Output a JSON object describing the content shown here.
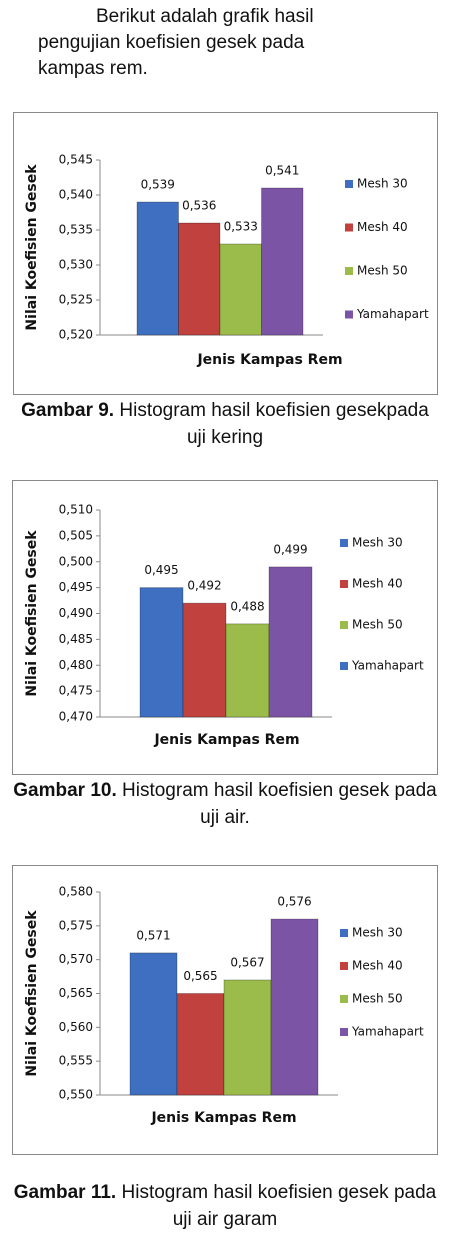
{
  "intro": "Berikut adalah grafik hasil pengujian koefisien gesek pada kampas rem.",
  "captions": [
    {
      "label": "Gambar 9.",
      "text": "Histogram hasil koefisien gesekpada uji kering"
    },
    {
      "label": "Gambar 10.",
      "text": "Histogram hasil koefisien gesek pada uji air."
    },
    {
      "label": "Gambar 11.",
      "text": "Histogram hasil koefisien gesek pada uji air garam"
    }
  ],
  "chart_data": [
    {
      "type": "bar",
      "y_label": "Nilai Koefisien Gesek",
      "x_label": "Jenis Kampas Rem",
      "categories": [
        null
      ],
      "ylim": [
        0.52,
        0.545
      ],
      "yticks": [
        {
          "value": 0.52,
          "label": "0,520"
        },
        {
          "value": 0.525,
          "label": "0,525"
        },
        {
          "value": 0.53,
          "label": "0,530"
        },
        {
          "value": 0.535,
          "label": "0,535"
        },
        {
          "value": 0.54,
          "label": "0,540"
        },
        {
          "value": 0.545,
          "label": "0,545"
        }
      ],
      "series": [
        {
          "name": "Mesh 30",
          "color": "#3e6fc0",
          "values": [
            0.539
          ],
          "value_labels": [
            "0,539"
          ]
        },
        {
          "name": "Mesh 40",
          "color": "#c0413d",
          "values": [
            0.536
          ],
          "value_labels": [
            "0,536"
          ]
        },
        {
          "name": "Mesh 50",
          "color": "#9bbb4a",
          "values": [
            0.533
          ],
          "value_labels": [
            "0,533"
          ]
        },
        {
          "name": "Yamahapart",
          "color": "#7b54a6",
          "values": [
            0.541
          ],
          "value_labels": [
            "0,541"
          ]
        }
      ]
    },
    {
      "type": "bar",
      "y_label": "Nilai Koefisien Gesek",
      "x_label": "Jenis Kampas Rem",
      "categories": [
        null
      ],
      "ylim": [
        0.47,
        0.51
      ],
      "yticks": [
        {
          "value": 0.47,
          "label": "0,470"
        },
        {
          "value": 0.475,
          "label": "0,475"
        },
        {
          "value": 0.48,
          "label": "0,480"
        },
        {
          "value": 0.485,
          "label": "0,485"
        },
        {
          "value": 0.49,
          "label": "0,490"
        },
        {
          "value": 0.495,
          "label": "0,495"
        },
        {
          "value": 0.5,
          "label": "0,500"
        },
        {
          "value": 0.505,
          "label": "0,505"
        },
        {
          "value": 0.51,
          "label": "0,510"
        }
      ],
      "series": [
        {
          "name": "Mesh 30",
          "color": "#3e6fc0",
          "values": [
            0.495
          ],
          "value_labels": [
            "0,495"
          ]
        },
        {
          "name": "Mesh 40",
          "color": "#c0413d",
          "values": [
            0.492
          ],
          "value_labels": [
            "0,492"
          ]
        },
        {
          "name": "Mesh 50",
          "color": "#9bbb4a",
          "values": [
            0.488
          ],
          "value_labels": [
            "0,488"
          ]
        },
        {
          "name": "Yamahapart",
          "color": "#7b54a6",
          "legend_color": "#3e6fc0",
          "values": [
            0.499
          ],
          "value_labels": [
            "0,499"
          ]
        }
      ]
    },
    {
      "type": "bar",
      "y_label": "Nilai Koefisien Gesek",
      "x_label": "Jenis Kampas Rem",
      "categories": [
        null
      ],
      "ylim": [
        0.55,
        0.58
      ],
      "yticks": [
        {
          "value": 0.55,
          "label": "0,550"
        },
        {
          "value": 0.555,
          "label": "0,555"
        },
        {
          "value": 0.56,
          "label": "0,560"
        },
        {
          "value": 0.565,
          "label": "0,565"
        },
        {
          "value": 0.57,
          "label": "0,570"
        },
        {
          "value": 0.575,
          "label": "0,575"
        },
        {
          "value": 0.58,
          "label": "0,580"
        }
      ],
      "series": [
        {
          "name": "Mesh 30",
          "color": "#3e6fc0",
          "values": [
            0.571
          ],
          "value_labels": [
            "0,571"
          ]
        },
        {
          "name": "Mesh 40",
          "color": "#c0413d",
          "values": [
            0.565
          ],
          "value_labels": [
            "0,565"
          ]
        },
        {
          "name": "Mesh 50",
          "color": "#9bbb4a",
          "values": [
            0.567
          ],
          "value_labels": [
            "0,567"
          ]
        },
        {
          "name": "Yamahapart",
          "color": "#7b54a6",
          "values": [
            0.576
          ],
          "value_labels": [
            "0,576"
          ]
        }
      ]
    }
  ]
}
